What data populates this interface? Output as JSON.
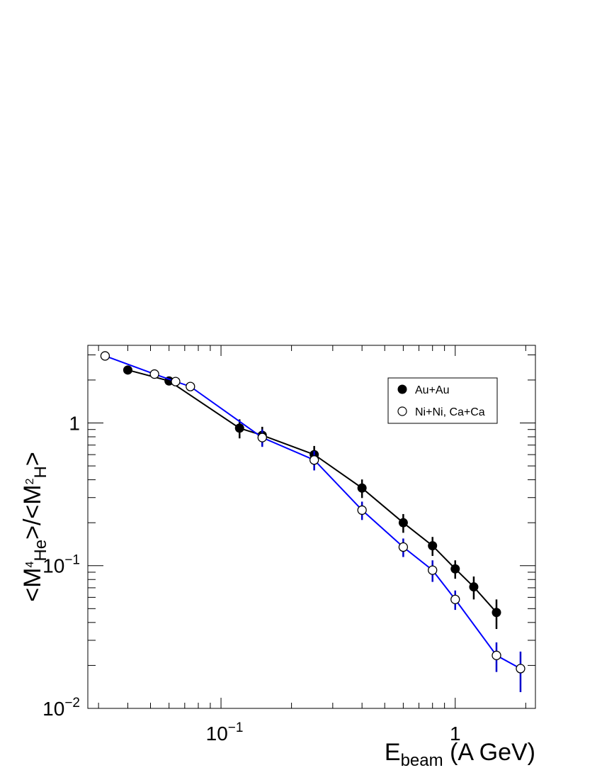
{
  "chart_data": {
    "type": "scatter",
    "xscale": "log",
    "yscale": "log",
    "xlim": [
      0.027,
      2.2
    ],
    "ylim": [
      0.01,
      3.5
    ],
    "xlabel": {
      "main": "E",
      "sub": "beam",
      "rest": " (A GeV)"
    },
    "ylabel": {
      "p1": "<M",
      "sup1": "4",
      "sub1": "He",
      "p2": ">/<M",
      "sup2": "2",
      "sub2": "H",
      "p3": ">"
    },
    "x_ticks": [
      {
        "value": 0.1,
        "base": "10",
        "exp": "−1"
      },
      {
        "value": 1,
        "base": "1",
        "exp": ""
      }
    ],
    "y_ticks": [
      {
        "value": 0.01,
        "base": "10",
        "exp": "−2"
      },
      {
        "value": 0.1,
        "base": "10",
        "exp": "−1"
      },
      {
        "value": 1,
        "base": "1",
        "exp": ""
      }
    ],
    "legend_position": "top-right",
    "series": [
      {
        "name": "Au+Au",
        "marker": "filled-circle",
        "line_color": "#000000",
        "error_color": "#000000",
        "points": [
          {
            "x": 0.04,
            "y": 2.35,
            "err": 0.0
          },
          {
            "x": 0.06,
            "y": 1.97,
            "err": 0.0
          },
          {
            "x": 0.12,
            "y": 0.92,
            "err": 0.14
          },
          {
            "x": 0.15,
            "y": 0.82,
            "err": 0.12
          },
          {
            "x": 0.25,
            "y": 0.6,
            "err": 0.09
          },
          {
            "x": 0.4,
            "y": 0.35,
            "err": 0.052
          },
          {
            "x": 0.6,
            "y": 0.2,
            "err": 0.03
          },
          {
            "x": 0.8,
            "y": 0.138,
            "err": 0.021
          },
          {
            "x": 1.0,
            "y": 0.095,
            "err": 0.014
          },
          {
            "x": 1.2,
            "y": 0.071,
            "err": 0.013
          },
          {
            "x": 1.5,
            "y": 0.047,
            "err": 0.011
          }
        ]
      },
      {
        "name": "Ni+Ni, Ca+Ca",
        "marker": "open-circle",
        "line_color": "#0000ff",
        "error_color": "#0000cc",
        "points": [
          {
            "x": 0.032,
            "y": 2.95,
            "err": 0.0
          },
          {
            "x": 0.052,
            "y": 2.2,
            "err": 0.0
          },
          {
            "x": 0.064,
            "y": 1.95,
            "err": 0.0
          },
          {
            "x": 0.074,
            "y": 1.8,
            "err": 0.0
          },
          {
            "x": 0.15,
            "y": 0.79,
            "err": 0.11
          },
          {
            "x": 0.25,
            "y": 0.55,
            "err": 0.085
          },
          {
            "x": 0.4,
            "y": 0.245,
            "err": 0.036
          },
          {
            "x": 0.6,
            "y": 0.135,
            "err": 0.02
          },
          {
            "x": 0.8,
            "y": 0.093,
            "err": 0.016
          },
          {
            "x": 1.0,
            "y": 0.058,
            "err": 0.009
          },
          {
            "x": 1.5,
            "y": 0.0235,
            "err": 0.0055
          },
          {
            "x": 1.9,
            "y": 0.019,
            "err": 0.006
          }
        ]
      }
    ]
  }
}
